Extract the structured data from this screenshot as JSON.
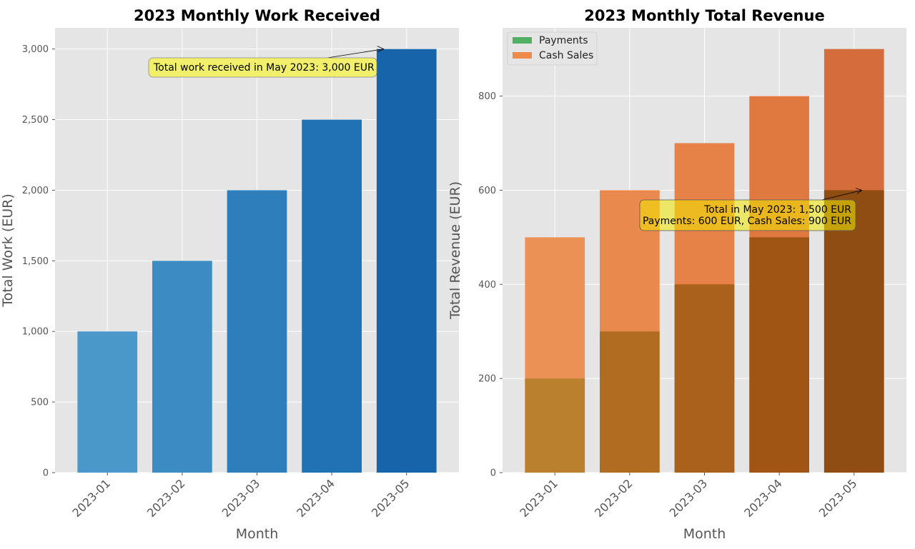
{
  "chart_data": [
    {
      "type": "bar",
      "title": "2023 Monthly Work Received",
      "xlabel": "Month",
      "ylabel": "Total Work (EUR)",
      "categories": [
        "2023-01",
        "2023-02",
        "2023-03",
        "2023-04",
        "2023-05"
      ],
      "values": [
        1000,
        1500,
        2000,
        2500,
        3000
      ],
      "ylim": [
        0,
        3150
      ],
      "yticks": [
        0,
        500,
        1000,
        1500,
        2000,
        2500,
        3000
      ],
      "ytick_labels": [
        "0",
        "500",
        "1,000",
        "1,500",
        "2,000",
        "2,500",
        "3,000"
      ],
      "bar_colors": [
        "#4a98c9",
        "#3c8bc3",
        "#2f7ebc",
        "#2171b5",
        "#1864aa"
      ],
      "grid": true,
      "annotation": {
        "text": "Total work received in May 2023: 3,000 EUR",
        "target_category": "2023-05",
        "target_value": 3000
      }
    },
    {
      "type": "bar",
      "title": "2023 Monthly Total Revenue",
      "xlabel": "Month",
      "ylabel": "Total Revenue (EUR)",
      "categories": [
        "2023-01",
        "2023-02",
        "2023-03",
        "2023-04",
        "2023-05"
      ],
      "series": [
        {
          "name": "Payments",
          "values": [
            200,
            300,
            400,
            500,
            600
          ],
          "colors": [
            "#bb802e",
            "#b06d22",
            "#a9611c",
            "#a05514",
            "#8f4d12"
          ]
        },
        {
          "name": "Cash Sales",
          "values": [
            500,
            600,
            700,
            800,
            900
          ],
          "colors": [
            "#ec9156",
            "#e9894d",
            "#e68148",
            "#e07940",
            "#d56c3c"
          ]
        }
      ],
      "legend": {
        "placement": "top-left",
        "swatch_colors": [
          "#52b062",
          "#ee8b4a"
        ]
      },
      "ylim": [
        0,
        945
      ],
      "yticks": [
        0,
        200,
        400,
        600,
        800
      ],
      "ytick_labels": [
        "0",
        "200",
        "400",
        "600",
        "800"
      ],
      "grid": true,
      "annotation": {
        "lines": [
          "Total in May 2023: 1,500 EUR",
          "Payments: 600 EUR, Cash Sales: 900 EUR"
        ],
        "target_category": "2023-05",
        "target_value": 600
      }
    }
  ]
}
